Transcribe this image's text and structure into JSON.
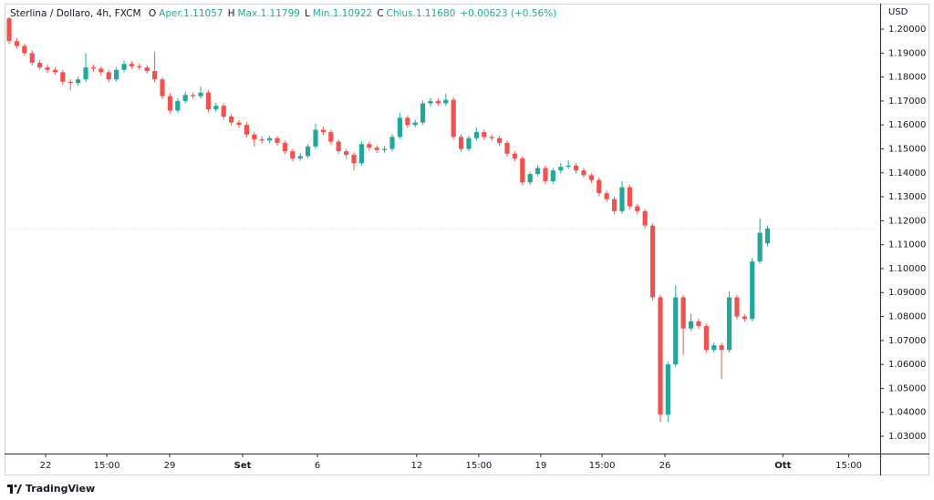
{
  "chart_data": {
    "type": "candlestick",
    "header": {
      "symbol": "Sterlina / Dollaro, 4h, FXCM",
      "fields": [
        {
          "letter": "O",
          "text": "Aper.1.11057"
        },
        {
          "letter": "H",
          "text": "Max.1.11799"
        },
        {
          "letter": "L",
          "text": "Min.1.10922"
        },
        {
          "letter": "C",
          "text": "Chius.1.11680"
        }
      ],
      "change": "+0.00623 (+0.56%)"
    },
    "y_axis_label": "USD",
    "brand": "TradingView",
    "up_color": "#26a69a",
    "down_color": "#ef5350",
    "last_price": 1.1168,
    "open": [
      1.2045,
      1.195,
      1.193,
      1.19,
      1.186,
      1.184,
      1.183,
      1.182,
      1.178,
      1.1775,
      1.179,
      1.184,
      1.1835,
      1.182,
      1.179,
      1.183,
      1.1855,
      1.1845,
      1.184,
      1.1825,
      1.179,
      1.172,
      1.166,
      1.17,
      1.1725,
      1.172,
      1.1735,
      1.1665,
      1.168,
      1.1635,
      1.161,
      1.16,
      1.156,
      1.154,
      1.1535,
      1.1545,
      1.1525,
      1.149,
      1.146,
      1.147,
      1.151,
      1.158,
      1.157,
      1.153,
      1.149,
      1.1475,
      1.144,
      1.152,
      1.1505,
      1.1495,
      1.15,
      1.155,
      1.163,
      1.16,
      1.161,
      1.169,
      1.17,
      1.169,
      1.1705,
      1.155,
      1.15,
      1.1545,
      1.157,
      1.155,
      1.1545,
      1.1525,
      1.148,
      1.146,
      1.136,
      1.1395,
      1.142,
      1.1365,
      1.141,
      1.1425,
      1.143,
      1.141,
      1.139,
      1.137,
      1.1315,
      1.129,
      1.124,
      1.134,
      1.126,
      1.124,
      1.118,
      1.088,
      1.039,
      1.06,
      1.088,
      1.075,
      1.078,
      1.076,
      1.066,
      1.068,
      1.066,
      1.088,
      1.08,
      1.079,
      1.103,
      1.11057
    ],
    "high": [
      1.205,
      1.1962,
      1.194,
      1.1912,
      1.187,
      1.1852,
      1.184,
      1.183,
      1.179,
      1.1802,
      1.19,
      1.1852,
      1.1845,
      1.183,
      1.1842,
      1.1868,
      1.1865,
      1.1855,
      1.185,
      1.1905,
      1.18,
      1.1732,
      1.1712,
      1.1738,
      1.1735,
      1.176,
      1.1745,
      1.1692,
      1.169,
      1.1645,
      1.162,
      1.1612,
      1.157,
      1.1552,
      1.1555,
      1.1555,
      1.1535,
      1.15,
      1.1482,
      1.152,
      1.1605,
      1.1592,
      1.158,
      1.154,
      1.15,
      1.1485,
      1.1532,
      1.153,
      1.1515,
      1.1512,
      1.1562,
      1.165,
      1.164,
      1.1622,
      1.1702,
      1.1712,
      1.171,
      1.173,
      1.1715,
      1.156,
      1.1555,
      1.159,
      1.158,
      1.156,
      1.1555,
      1.1535,
      1.149,
      1.147,
      1.1405,
      1.1432,
      1.143,
      1.142,
      1.144,
      1.1452,
      1.144,
      1.142,
      1.14,
      1.138,
      1.1325,
      1.13,
      1.1365,
      1.135,
      1.127,
      1.125,
      1.119,
      1.089,
      1.0612,
      1.093,
      1.089,
      1.081,
      1.0792,
      1.077,
      1.0692,
      1.069,
      1.0905,
      1.089,
      1.081,
      1.1045,
      1.121,
      1.11799
    ],
    "low": [
      1.1938,
      1.192,
      1.189,
      1.1848,
      1.183,
      1.1818,
      1.181,
      1.1768,
      1.1745,
      1.1765,
      1.178,
      1.1822,
      1.1808,
      1.1778,
      1.178,
      1.182,
      1.1835,
      1.183,
      1.1815,
      1.1778,
      1.1708,
      1.1648,
      1.165,
      1.169,
      1.1708,
      1.171,
      1.1652,
      1.1655,
      1.1622,
      1.1598,
      1.1588,
      1.1548,
      1.151,
      1.1522,
      1.1525,
      1.1512,
      1.1478,
      1.1448,
      1.145,
      1.146,
      1.15,
      1.1558,
      1.1518,
      1.1478,
      1.1462,
      1.141,
      1.143,
      1.1492,
      1.1482,
      1.1485,
      1.149,
      1.154,
      1.1588,
      1.159,
      1.16,
      1.1678,
      1.168,
      1.168,
      1.1538,
      1.1488,
      1.149,
      1.1535,
      1.1538,
      1.1533,
      1.1512,
      1.1468,
      1.1448,
      1.1348,
      1.135,
      1.1385,
      1.1352,
      1.1355,
      1.1398,
      1.1415,
      1.1398,
      1.1378,
      1.1358,
      1.1302,
      1.1278,
      1.1228,
      1.123,
      1.1248,
      1.1228,
      1.1168,
      1.0868,
      1.036,
      1.036,
      1.059,
      1.064,
      1.074,
      1.0748,
      1.0648,
      1.065,
      1.054,
      1.065,
      1.0788,
      1.0778,
      1.078,
      1.102,
      1.10922
    ],
    "close": [
      1.195,
      1.193,
      1.19,
      1.186,
      1.184,
      1.183,
      1.182,
      1.178,
      1.1775,
      1.179,
      1.184,
      1.1835,
      1.182,
      1.179,
      1.183,
      1.1855,
      1.1845,
      1.184,
      1.1825,
      1.179,
      1.172,
      1.166,
      1.17,
      1.1725,
      1.172,
      1.1735,
      1.1665,
      1.168,
      1.1635,
      1.161,
      1.16,
      1.156,
      1.154,
      1.1535,
      1.1545,
      1.1525,
      1.149,
      1.146,
      1.147,
      1.151,
      1.158,
      1.157,
      1.153,
      1.149,
      1.1475,
      1.144,
      1.152,
      1.1505,
      1.1495,
      1.15,
      1.155,
      1.163,
      1.16,
      1.161,
      1.169,
      1.17,
      1.169,
      1.1705,
      1.155,
      1.15,
      1.1545,
      1.157,
      1.155,
      1.1545,
      1.1525,
      1.148,
      1.146,
      1.136,
      1.1395,
      1.142,
      1.1365,
      1.141,
      1.1425,
      1.143,
      1.141,
      1.139,
      1.137,
      1.1315,
      1.129,
      1.124,
      1.134,
      1.126,
      1.124,
      1.118,
      1.088,
      1.039,
      1.06,
      1.088,
      1.075,
      1.078,
      1.076,
      1.066,
      1.068,
      1.066,
      1.088,
      1.08,
      1.079,
      1.103,
      1.115,
      1.1168
    ],
    "xlim": [
      -0.6,
      113.7
    ],
    "xticks": [
      {
        "value": 4.76,
        "label": "22"
      },
      {
        "value": 12.74,
        "label": "15:00"
      },
      {
        "value": 20.95,
        "label": "29"
      },
      {
        "value": 30.48,
        "label": "Set",
        "bold": true
      },
      {
        "value": 40.24,
        "label": "6"
      },
      {
        "value": 53.2,
        "label": "12"
      },
      {
        "value": 61.3,
        "label": "15:00"
      },
      {
        "value": 69.4,
        "label": "19"
      },
      {
        "value": 77.4,
        "label": "15:00"
      },
      {
        "value": 85.6,
        "label": "26"
      },
      {
        "value": 101,
        "label": "Ott",
        "bold": true
      },
      {
        "value": 109.6,
        "label": "15:00"
      }
    ],
    "ylim": [
      1.02278,
      1.21027
    ],
    "yticks": [
      {
        "value": 1.2,
        "label": "1.20000"
      },
      {
        "value": 1.19,
        "label": "1.19000"
      },
      {
        "value": 1.18,
        "label": "1.18000"
      },
      {
        "value": 1.17,
        "label": "1.17000"
      },
      {
        "value": 1.16,
        "label": "1.16000"
      },
      {
        "value": 1.15,
        "label": "1.15000"
      },
      {
        "value": 1.14,
        "label": "1.14000"
      },
      {
        "value": 1.13,
        "label": "1.13000"
      },
      {
        "value": 1.12,
        "label": "1.12000"
      },
      {
        "value": 1.11,
        "label": "1.11000"
      },
      {
        "value": 1.1,
        "label": "1.10000"
      },
      {
        "value": 1.09,
        "label": "1.09000"
      },
      {
        "value": 1.08,
        "label": "1.08000"
      },
      {
        "value": 1.07,
        "label": "1.07000"
      },
      {
        "value": 1.06,
        "label": "1.06000"
      },
      {
        "value": 1.05,
        "label": "1.05000"
      },
      {
        "value": 1.04,
        "label": "1.04000"
      },
      {
        "value": 1.03,
        "label": "1.03000"
      }
    ]
  }
}
